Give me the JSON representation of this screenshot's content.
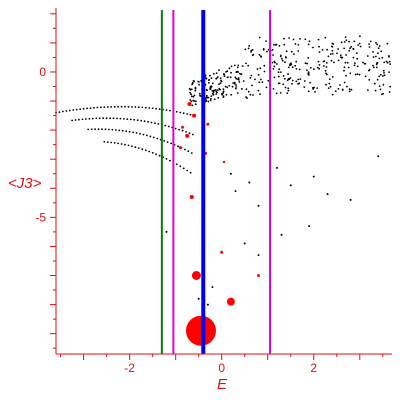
{
  "chart_data": {
    "type": "scatter",
    "xlabel": "E",
    "ylabel": "<J3>",
    "xlim": [
      -3.6,
      3.7
    ],
    "ylim": [
      -9.7,
      2.2
    ],
    "x_ticks": [
      -2,
      0,
      2
    ],
    "x_tick_labels": [
      "-2",
      "0",
      "2"
    ],
    "y_ticks": [
      0,
      -5
    ],
    "y_tick_labels": [
      "0",
      "-5"
    ],
    "grid": false,
    "axis_color": "#e01010",
    "vertical_lines": [
      {
        "x": -1.3,
        "color": "#0a7a0a"
      },
      {
        "x": -1.05,
        "color": "#e000e0"
      },
      {
        "x": -0.4,
        "color": "#0000ee"
      },
      {
        "x": 1.05,
        "color": "#e000e0"
      }
    ],
    "red_points": [
      {
        "x": -0.45,
        "y": -8.9,
        "size": 15
      },
      {
        "x": 0.2,
        "y": -7.9,
        "size": 4
      },
      {
        "x": -0.55,
        "y": -7.0,
        "size": 4.5
      },
      {
        "x": 0.8,
        "y": -7.0,
        "size": 1.5
      },
      {
        "x": 0.0,
        "y": -6.2,
        "size": 1.5
      },
      {
        "x": -0.65,
        "y": -4.3,
        "size": 2
      },
      {
        "x": -0.75,
        "y": -2.2,
        "size": 2
      },
      {
        "x": -0.6,
        "y": -1.5,
        "size": 2
      },
      {
        "x": -0.9,
        "y": -2.6,
        "size": 1.5
      },
      {
        "x": -0.7,
        "y": -1.1,
        "size": 2
      },
      {
        "x": -0.3,
        "y": -1.8,
        "size": 1.5
      },
      {
        "x": -0.35,
        "y": -2.8,
        "size": 1.5
      },
      {
        "x": -0.85,
        "y": -1.9,
        "size": 1.5
      },
      {
        "x": 0.05,
        "y": -3.1,
        "size": 1.2
      }
    ],
    "black_points": [
      {
        "x": -0.3,
        "y": -8.0
      },
      {
        "x": -0.2,
        "y": -7.4
      },
      {
        "x": -0.5,
        "y": -7.8
      },
      {
        "x": 0.8,
        "y": -6.3
      },
      {
        "x": 0.5,
        "y": -5.9
      },
      {
        "x": 1.3,
        "y": -5.6
      },
      {
        "x": 1.9,
        "y": -5.3
      },
      {
        "x": -1.2,
        "y": -5.5
      },
      {
        "x": 0.3,
        "y": -4.1
      },
      {
        "x": 0.6,
        "y": -3.8
      },
      {
        "x": 0.8,
        "y": -4.6
      },
      {
        "x": 1.2,
        "y": -3.3
      },
      {
        "x": 2.3,
        "y": -4.2
      },
      {
        "x": 2.8,
        "y": -4.4
      },
      {
        "x": 3.4,
        "y": -2.9
      },
      {
        "x": 1.5,
        "y": -3.9
      },
      {
        "x": 0.2,
        "y": -3.5
      },
      {
        "x": 2.0,
        "y": -3.6
      }
    ]
  }
}
